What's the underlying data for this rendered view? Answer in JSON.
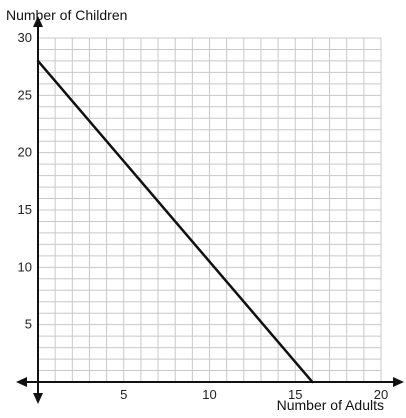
{
  "chart_data": {
    "type": "line",
    "title": "",
    "xlabel": "Number of Adults",
    "ylabel": "Number of Children",
    "xlim": [
      0,
      20
    ],
    "ylim": [
      0,
      30
    ],
    "x_ticks": [
      5,
      10,
      15,
      20
    ],
    "y_ticks": [
      5,
      10,
      15,
      20,
      25,
      30
    ],
    "grid": true,
    "grid_minor_x": 1,
    "grid_minor_y": 1,
    "series": [
      {
        "x": [
          0,
          16
        ],
        "y": [
          28,
          0
        ]
      }
    ],
    "colors": {
      "line": "#111111",
      "grid": "#c8c8c8",
      "axis": "#111111"
    }
  }
}
